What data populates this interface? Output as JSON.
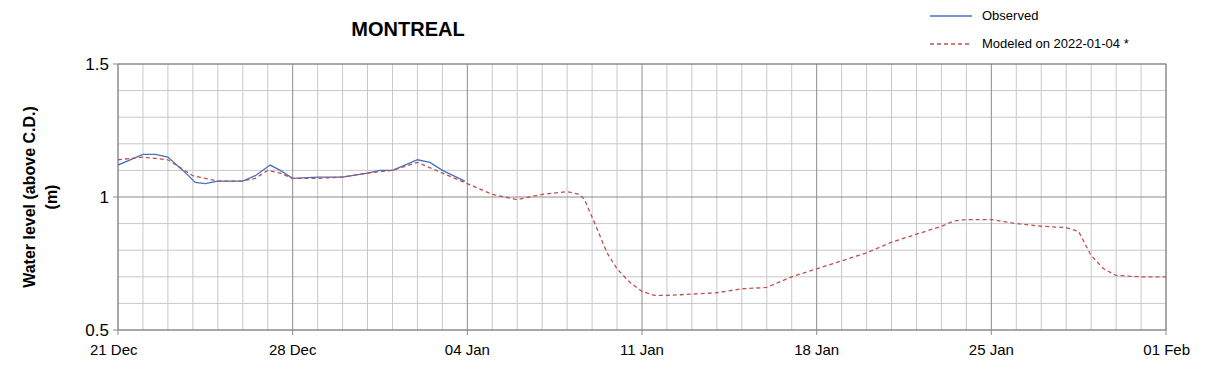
{
  "chart_data": {
    "type": "line",
    "title": "MONTREAL",
    "ylabel": [
      "Water level (above C.D.)",
      "(m)"
    ],
    "xlim": [
      0,
      42
    ],
    "xticks": [
      {
        "value": 0,
        "label": "21 Dec"
      },
      {
        "value": 7,
        "label": "28 Dec"
      },
      {
        "value": 14,
        "label": "04 Jan"
      },
      {
        "value": 21,
        "label": "11 Jan"
      },
      {
        "value": 28,
        "label": "18 Jan"
      },
      {
        "value": 35,
        "label": "25 Jan"
      },
      {
        "value": 42,
        "label": "01 Feb"
      }
    ],
    "ylim": [
      0.5,
      1.5
    ],
    "yticks": [
      0.5,
      1,
      1.5
    ],
    "grid": true,
    "legend": "top-right",
    "series": [
      {
        "name": "Observed",
        "color": "#4472c4",
        "line_style": "solid",
        "x": [
          0,
          1,
          1.5,
          2,
          2.6,
          3.1,
          3.5,
          4,
          5,
          5.5,
          6.1,
          6.5,
          7,
          8,
          9,
          10,
          10.5,
          11,
          11.5,
          12,
          12.5,
          13,
          13.9
        ],
        "values": [
          1.12,
          1.16,
          1.16,
          1.15,
          1.1,
          1.055,
          1.05,
          1.06,
          1.06,
          1.08,
          1.12,
          1.1,
          1.07,
          1.075,
          1.075,
          1.09,
          1.1,
          1.1,
          1.12,
          1.14,
          1.13,
          1.1,
          1.06
        ]
      },
      {
        "name": "Modeled on 2022-01-04 *",
        "color": "#c0504d",
        "line_style": "dashed",
        "x": [
          0,
          1,
          2,
          3,
          4,
          5,
          5.5,
          6,
          6.5,
          7,
          8,
          9,
          10,
          11,
          12,
          13,
          14,
          15,
          16,
          16.5,
          17,
          18,
          18.5,
          18.7,
          19.2,
          19.6,
          20,
          20.5,
          21,
          21.5,
          22,
          23,
          24,
          25,
          26,
          27,
          28,
          29,
          30,
          31,
          32,
          33,
          33.5,
          34,
          35,
          36,
          37,
          38,
          38.5,
          39,
          39.5,
          40,
          41,
          42
        ],
        "values": [
          1.14,
          1.15,
          1.14,
          1.08,
          1.06,
          1.06,
          1.07,
          1.1,
          1.09,
          1.07,
          1.07,
          1.075,
          1.09,
          1.1,
          1.13,
          1.09,
          1.05,
          1.01,
          0.99,
          1.0,
          1.01,
          1.02,
          1.01,
          0.99,
          0.88,
          0.79,
          0.73,
          0.68,
          0.645,
          0.63,
          0.63,
          0.635,
          0.64,
          0.655,
          0.66,
          0.7,
          0.73,
          0.76,
          0.79,
          0.83,
          0.86,
          0.89,
          0.91,
          0.915,
          0.915,
          0.9,
          0.89,
          0.885,
          0.87,
          0.78,
          0.73,
          0.705,
          0.7,
          0.7
        ]
      }
    ]
  }
}
